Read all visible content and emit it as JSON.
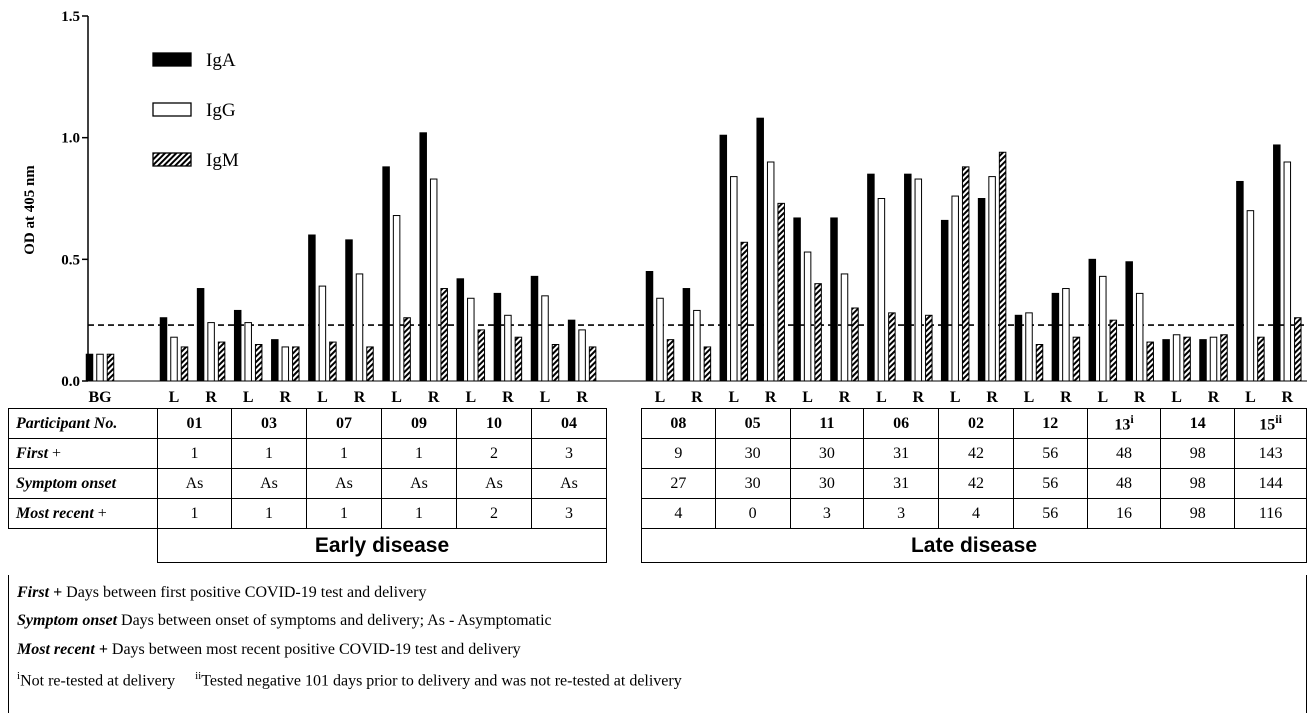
{
  "chart_data": {
    "type": "bar",
    "ylabel": "OD at 405 nm",
    "ylim": [
      0,
      1.5
    ],
    "yticks": [
      "0.0",
      "0.5",
      "1.0",
      "1.5"
    ],
    "threshold": 0.23,
    "legend": {
      "placement": "top-left",
      "entries": [
        "IgA",
        "IgG",
        "IgM"
      ]
    },
    "series": [
      {
        "name": "IgA",
        "fill": "black"
      },
      {
        "name": "IgG",
        "fill": "white"
      },
      {
        "name": "IgM",
        "fill": "hatched"
      }
    ],
    "groups": [
      {
        "label": "BG",
        "values": [
          0.11,
          0.11,
          0.11
        ]
      },
      {
        "label": "L",
        "values": [
          0.26,
          0.18,
          0.14
        ]
      },
      {
        "label": "R",
        "values": [
          0.38,
          0.24,
          0.16
        ]
      },
      {
        "label": "L",
        "values": [
          0.29,
          0.24,
          0.15
        ]
      },
      {
        "label": "R",
        "values": [
          0.17,
          0.14,
          0.14
        ]
      },
      {
        "label": "L",
        "values": [
          0.6,
          0.39,
          0.16
        ]
      },
      {
        "label": "R",
        "values": [
          0.58,
          0.44,
          0.14
        ]
      },
      {
        "label": "L",
        "values": [
          0.88,
          0.68,
          0.26
        ]
      },
      {
        "label": "R",
        "values": [
          1.02,
          0.83,
          0.38
        ]
      },
      {
        "label": "L",
        "values": [
          0.42,
          0.34,
          0.21
        ]
      },
      {
        "label": "R",
        "values": [
          0.36,
          0.27,
          0.18
        ]
      },
      {
        "label": "L",
        "values": [
          0.43,
          0.35,
          0.15
        ]
      },
      {
        "label": "R",
        "values": [
          0.25,
          0.21,
          0.14
        ]
      },
      {
        "label": "L",
        "values": [
          0.45,
          0.34,
          0.17
        ]
      },
      {
        "label": "R",
        "values": [
          0.38,
          0.29,
          0.14
        ]
      },
      {
        "label": "L",
        "values": [
          1.01,
          0.84,
          0.57
        ]
      },
      {
        "label": "R",
        "values": [
          1.08,
          0.9,
          0.73
        ]
      },
      {
        "label": "L",
        "values": [
          0.67,
          0.53,
          0.4
        ]
      },
      {
        "label": "R",
        "values": [
          0.67,
          0.44,
          0.3
        ]
      },
      {
        "label": "L",
        "values": [
          0.85,
          0.75,
          0.28
        ]
      },
      {
        "label": "R",
        "values": [
          0.85,
          0.83,
          0.27
        ]
      },
      {
        "label": "L",
        "values": [
          0.66,
          0.76,
          0.88
        ]
      },
      {
        "label": "R",
        "values": [
          0.75,
          0.84,
          0.94
        ]
      },
      {
        "label": "L",
        "values": [
          0.27,
          0.28,
          0.15
        ]
      },
      {
        "label": "R",
        "values": [
          0.36,
          0.38,
          0.18
        ]
      },
      {
        "label": "L",
        "values": [
          0.5,
          0.43,
          0.25
        ]
      },
      {
        "label": "R",
        "values": [
          0.49,
          0.36,
          0.16
        ]
      },
      {
        "label": "L",
        "values": [
          0.17,
          0.19,
          0.18
        ]
      },
      {
        "label": "R",
        "values": [
          0.17,
          0.18,
          0.19
        ]
      },
      {
        "label": "L",
        "values": [
          0.82,
          0.7,
          0.18
        ]
      },
      {
        "label": "R",
        "values": [
          0.97,
          0.9,
          0.26
        ]
      }
    ]
  },
  "table": {
    "row_labels": {
      "participant": "Participant No.",
      "first": "First",
      "first_plus": " +",
      "symptom": "Symptom onset",
      "recent": "Most recent",
      "recent_plus": " +"
    },
    "early": {
      "label": "Early disease",
      "participants": [
        "01",
        "03",
        "07",
        "09",
        "10",
        "04"
      ],
      "first": [
        "1",
        "1",
        "1",
        "1",
        "2",
        "3"
      ],
      "symptom": [
        "As",
        "As",
        "As",
        "As",
        "As",
        "As"
      ],
      "recent": [
        "1",
        "1",
        "1",
        "1",
        "2",
        "3"
      ]
    },
    "late": {
      "label": "Late disease",
      "participants": [
        "08",
        "05",
        "11",
        "06",
        "02",
        "12",
        "13",
        "14",
        "15"
      ],
      "participant_sup": [
        "",
        "",
        "",
        "",
        "",
        "",
        "i",
        "",
        "ii"
      ],
      "first": [
        "9",
        "30",
        "30",
        "31",
        "42",
        "56",
        "48",
        "98",
        "143"
      ],
      "symptom": [
        "27",
        "30",
        "30",
        "31",
        "42",
        "56",
        "48",
        "98",
        "144"
      ],
      "recent": [
        "4",
        "0",
        "3",
        "3",
        "4",
        "56",
        "16",
        "98",
        "116"
      ]
    }
  },
  "footnotes": {
    "first_term": "First +",
    "first_text": " Days between first positive COVID-19 test and delivery",
    "symptom_term": "Symptom onset",
    "symptom_text": " Days between onset of symptoms and delivery; As - Asymptomatic",
    "recent_term": "Most recent +",
    "recent_text": " Days between most recent positive COVID-19 test and delivery",
    "note1_mark": "i",
    "note1_text": "Not re-tested at delivery",
    "note2_mark": "ii",
    "note2_text": "Tested negative 101 days prior to delivery and was not re-tested at delivery"
  }
}
